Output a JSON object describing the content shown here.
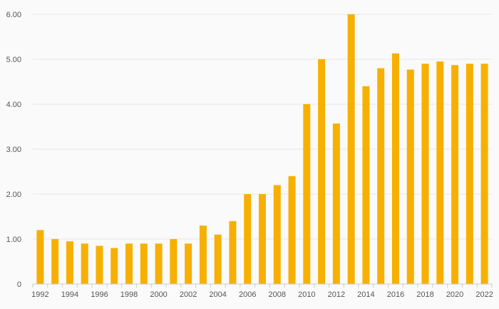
{
  "chart_data": {
    "type": "bar",
    "title": "",
    "xlabel": "",
    "ylabel": "",
    "ylim": [
      0,
      6
    ],
    "y_ticks": [
      "0",
      "1.00",
      "2.00",
      "3.00",
      "4.00",
      "5.00",
      "6.00"
    ],
    "grid": true,
    "legend": "none",
    "bar_color": "#f7b000",
    "categories": [
      "1992",
      "1993",
      "1994",
      "1995",
      "1996",
      "1997",
      "1998",
      "1999",
      "2000",
      "2001",
      "2002",
      "2003",
      "2004",
      "2005",
      "2006",
      "2007",
      "2008",
      "2009",
      "2010",
      "2011",
      "2012",
      "2013",
      "2014",
      "2015",
      "2016",
      "2017",
      "2018",
      "2019",
      "2020",
      "2021",
      "2022"
    ],
    "x_tick_labels": [
      "1992",
      "",
      "1994",
      "",
      "1996",
      "",
      "1998",
      "",
      "2000",
      "",
      "2002",
      "",
      "2004",
      "",
      "2006",
      "",
      "2008",
      "",
      "2010",
      "",
      "2012",
      "",
      "2014",
      "",
      "2016",
      "",
      "2018",
      "",
      "2020",
      "",
      "2022"
    ],
    "values": [
      1.2,
      1.0,
      0.95,
      0.9,
      0.85,
      0.8,
      0.9,
      0.9,
      0.9,
      1.0,
      0.9,
      1.3,
      1.1,
      1.4,
      2.0,
      2.0,
      2.2,
      2.4,
      4.0,
      5.0,
      3.57,
      6.0,
      4.4,
      4.8,
      5.13,
      4.77,
      4.9,
      4.95,
      4.87,
      4.9,
      4.9
    ]
  }
}
